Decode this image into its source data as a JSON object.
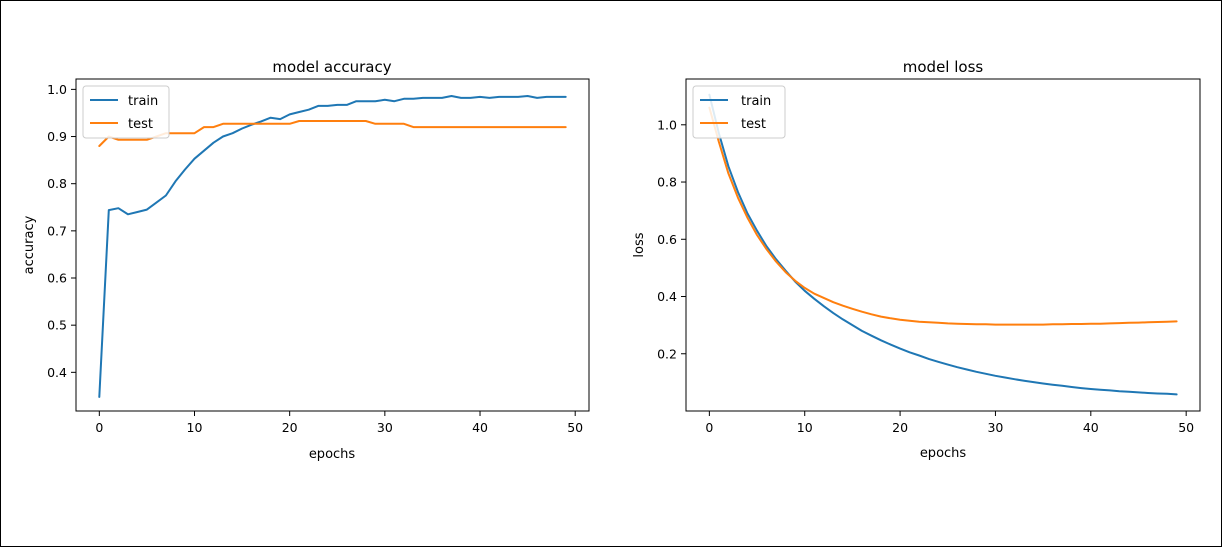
{
  "chart_data": [
    {
      "type": "line",
      "title": "model accuracy",
      "xlabel": "epochs",
      "ylabel": "accuracy",
      "xlim": [
        -2.45,
        51.45
      ],
      "ylim": [
        0.318,
        1.022
      ],
      "xticks": [
        0,
        10,
        20,
        30,
        40,
        50
      ],
      "yticks": [
        0.4,
        0.5,
        0.6,
        0.7,
        0.8,
        0.9,
        1.0
      ],
      "ytick_labels": [
        "0.4",
        "0.5",
        "0.6",
        "0.7",
        "0.8",
        "0.9",
        "1.0"
      ],
      "legend_position": "upper left",
      "x": [
        0,
        1,
        2,
        3,
        4,
        5,
        6,
        7,
        8,
        9,
        10,
        11,
        12,
        13,
        14,
        15,
        16,
        17,
        18,
        19,
        20,
        21,
        22,
        23,
        24,
        25,
        26,
        27,
        28,
        29,
        30,
        31,
        32,
        33,
        34,
        35,
        36,
        37,
        38,
        39,
        40,
        41,
        42,
        43,
        44,
        45,
        46,
        47,
        48,
        49
      ],
      "series": [
        {
          "name": "train",
          "color": "#1f77b4",
          "values": [
            0.348,
            0.744,
            0.748,
            0.735,
            0.74,
            0.745,
            0.76,
            0.775,
            0.805,
            0.83,
            0.853,
            0.87,
            0.887,
            0.9,
            0.907,
            0.917,
            0.925,
            0.932,
            0.94,
            0.937,
            0.947,
            0.952,
            0.957,
            0.965,
            0.965,
            0.967,
            0.967,
            0.975,
            0.975,
            0.975,
            0.978,
            0.975,
            0.98,
            0.98,
            0.982,
            0.982,
            0.982,
            0.986,
            0.982,
            0.982,
            0.984,
            0.982,
            0.984,
            0.984,
            0.984,
            0.986,
            0.982,
            0.984,
            0.984,
            0.984
          ]
        },
        {
          "name": "test",
          "color": "#ff7f0e",
          "values": [
            0.88,
            0.9,
            0.893,
            0.893,
            0.893,
            0.893,
            0.9,
            0.907,
            0.907,
            0.907,
            0.907,
            0.92,
            0.92,
            0.927,
            0.927,
            0.927,
            0.927,
            0.927,
            0.927,
            0.927,
            0.927,
            0.933,
            0.933,
            0.933,
            0.933,
            0.933,
            0.933,
            0.933,
            0.933,
            0.927,
            0.927,
            0.927,
            0.927,
            0.92,
            0.92,
            0.92,
            0.92,
            0.92,
            0.92,
            0.92,
            0.92,
            0.92,
            0.92,
            0.92,
            0.92,
            0.92,
            0.92,
            0.92,
            0.92,
            0.92
          ]
        }
      ]
    },
    {
      "type": "line",
      "title": "model loss",
      "xlabel": "epochs",
      "ylabel": "loss",
      "xlim": [
        -2.45,
        51.45
      ],
      "ylim": [
        0.0,
        1.16
      ],
      "xticks": [
        0,
        10,
        20,
        30,
        40,
        50
      ],
      "yticks": [
        0.2,
        0.4,
        0.6,
        0.8,
        1.0
      ],
      "ytick_labels": [
        "0.2",
        "0.4",
        "0.6",
        "0.8",
        "1.0"
      ],
      "legend_position": "upper left",
      "x": [
        0,
        1,
        2,
        3,
        4,
        5,
        6,
        7,
        8,
        9,
        10,
        11,
        12,
        13,
        14,
        15,
        16,
        17,
        18,
        19,
        20,
        21,
        22,
        23,
        24,
        25,
        26,
        27,
        28,
        29,
        30,
        31,
        32,
        33,
        34,
        35,
        36,
        37,
        38,
        39,
        40,
        41,
        42,
        43,
        44,
        45,
        46,
        47,
        48,
        49
      ],
      "series": [
        {
          "name": "train",
          "color": "#1f77b4",
          "values": [
            1.105,
            0.97,
            0.855,
            0.765,
            0.69,
            0.63,
            0.575,
            0.53,
            0.49,
            0.452,
            0.42,
            0.392,
            0.366,
            0.342,
            0.32,
            0.3,
            0.28,
            0.263,
            0.247,
            0.232,
            0.218,
            0.205,
            0.194,
            0.182,
            0.172,
            0.162,
            0.153,
            0.145,
            0.137,
            0.13,
            0.123,
            0.117,
            0.111,
            0.106,
            0.101,
            0.096,
            0.092,
            0.088,
            0.084,
            0.08,
            0.077,
            0.074,
            0.072,
            0.069,
            0.067,
            0.065,
            0.063,
            0.061,
            0.06,
            0.058
          ]
        },
        {
          "name": "test",
          "color": "#ff7f0e",
          "values": [
            1.06,
            0.94,
            0.83,
            0.745,
            0.675,
            0.615,
            0.565,
            0.522,
            0.485,
            0.455,
            0.43,
            0.41,
            0.395,
            0.38,
            0.368,
            0.357,
            0.347,
            0.338,
            0.33,
            0.324,
            0.319,
            0.315,
            0.312,
            0.31,
            0.308,
            0.306,
            0.305,
            0.304,
            0.303,
            0.303,
            0.302,
            0.302,
            0.302,
            0.302,
            0.302,
            0.302,
            0.303,
            0.303,
            0.304,
            0.304,
            0.305,
            0.305,
            0.306,
            0.307,
            0.308,
            0.309,
            0.31,
            0.311,
            0.312,
            0.313
          ]
        }
      ]
    }
  ]
}
